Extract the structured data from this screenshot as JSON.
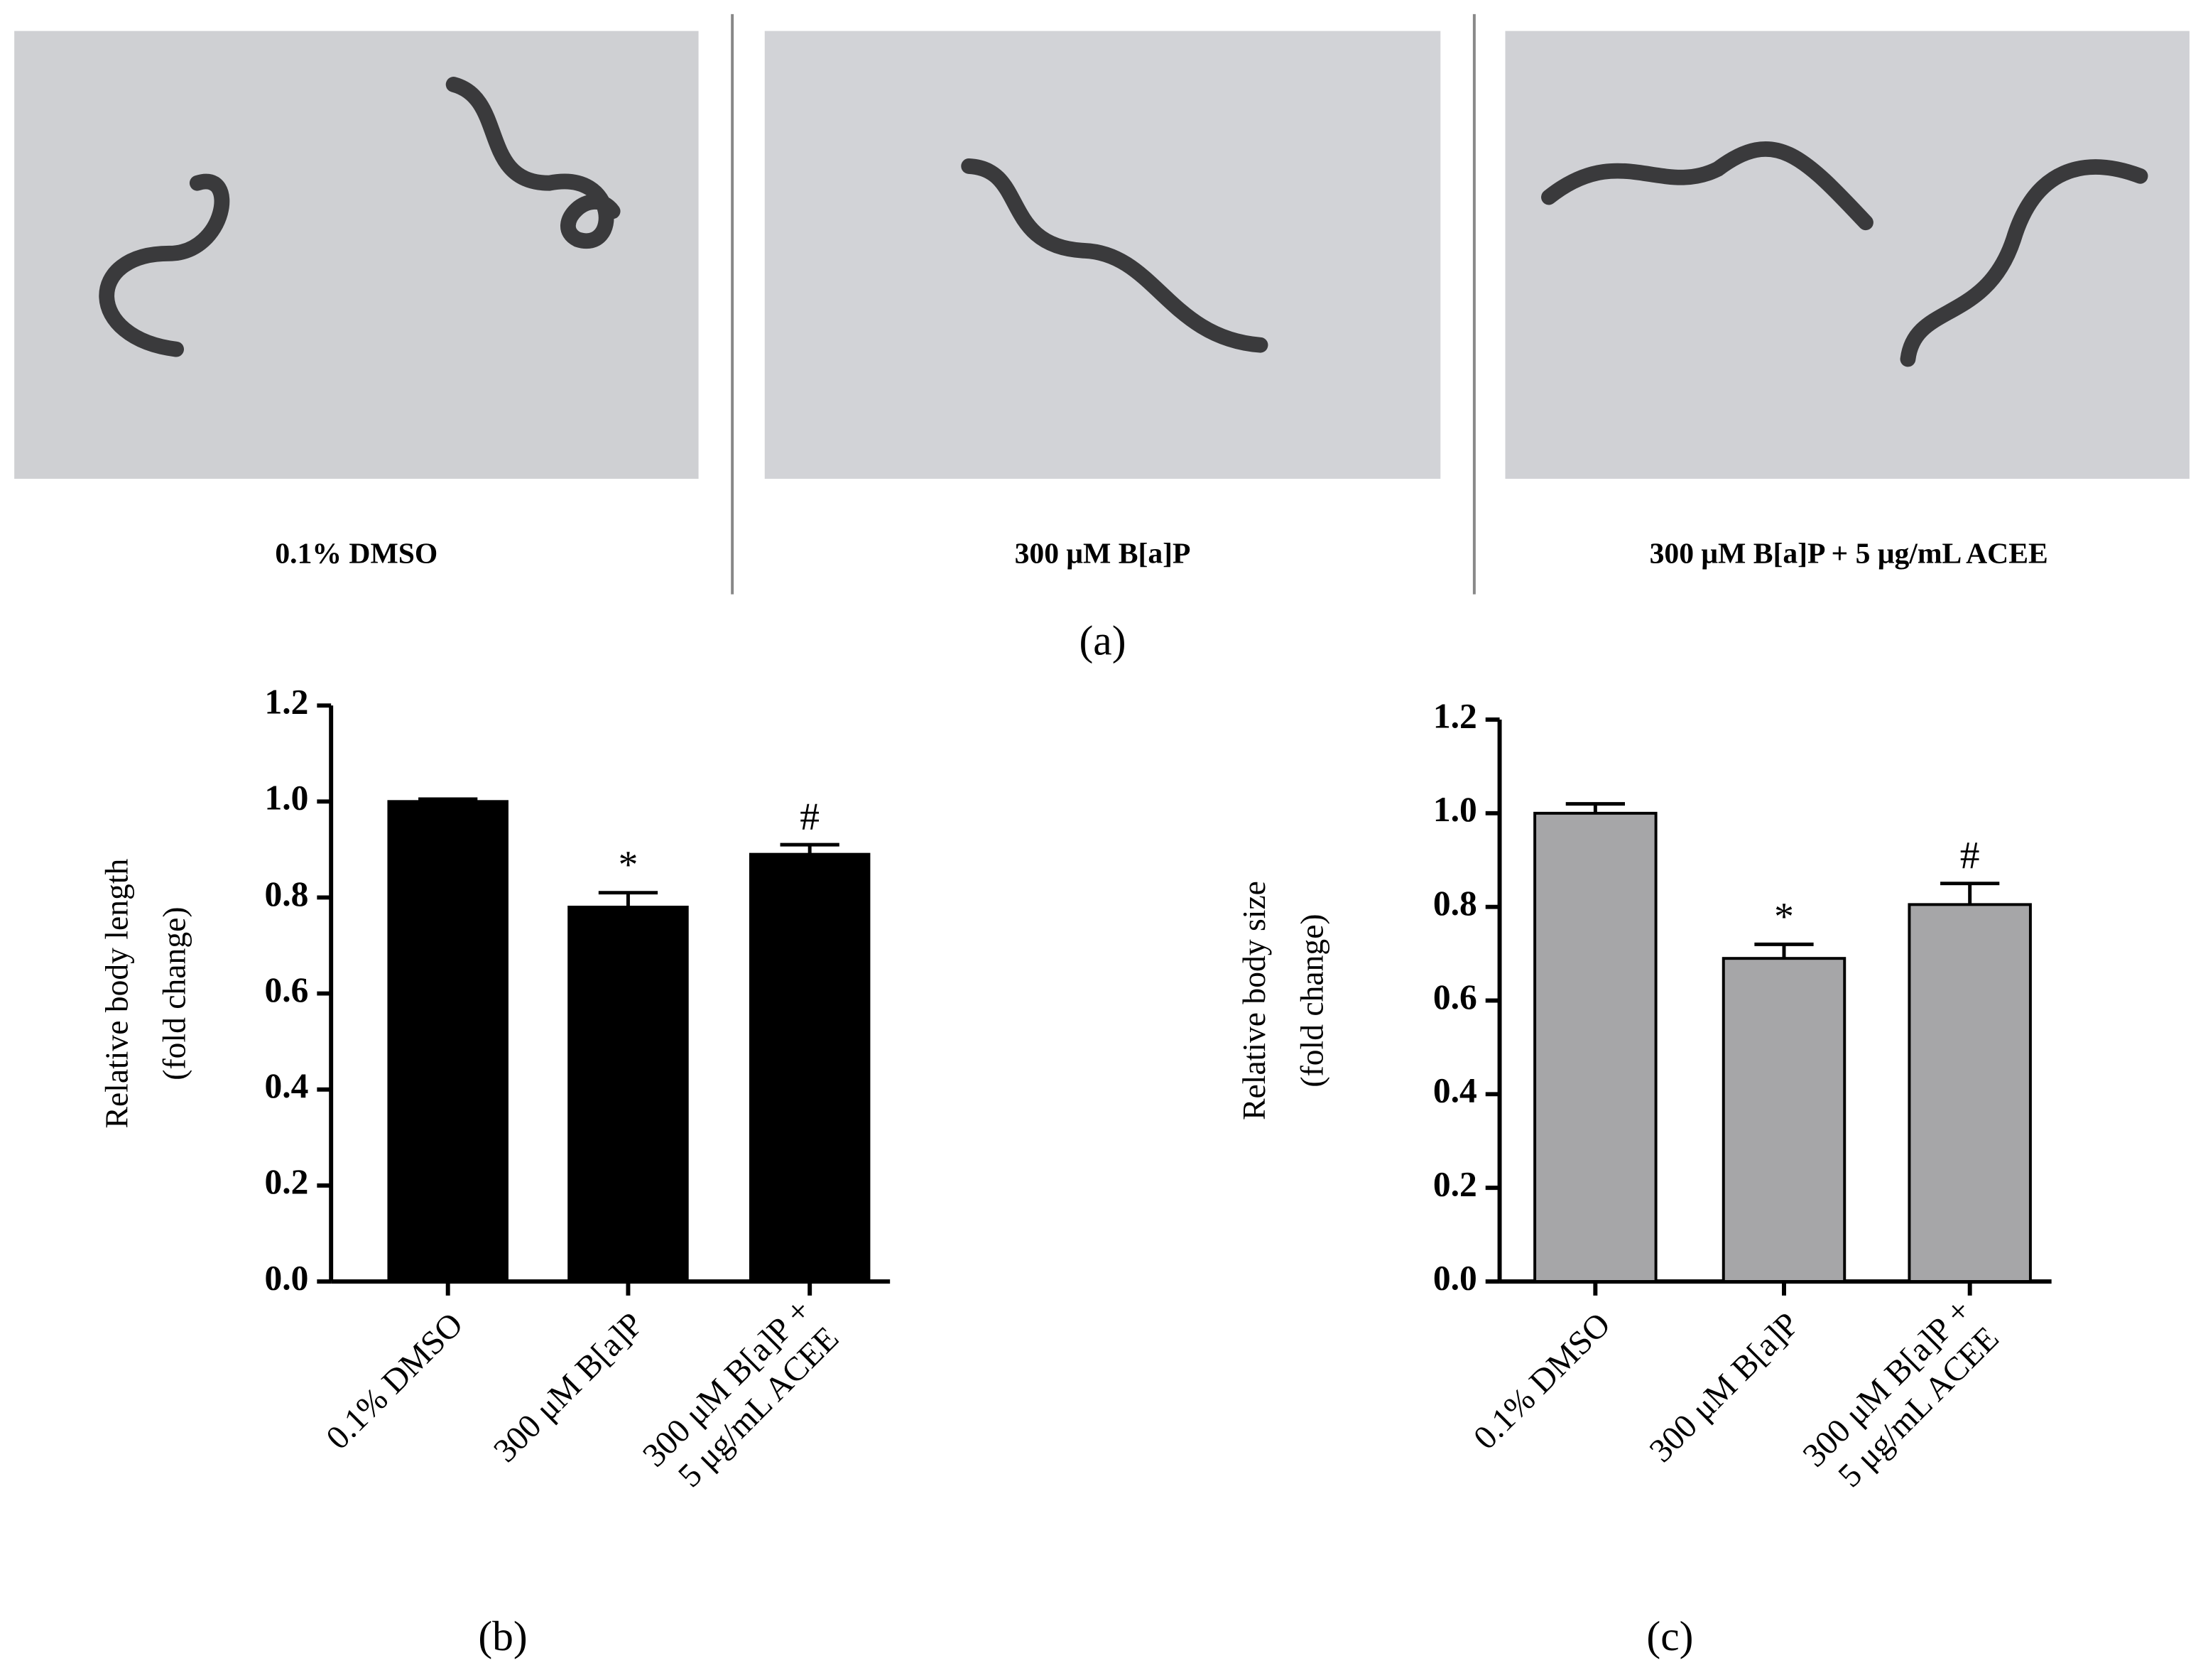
{
  "photos": {
    "captions": [
      "0.1% DMSO",
      "300 μM B[a]P",
      "300 μM B[a]P + 5 μg/mL ACEE"
    ],
    "label": "(a)"
  },
  "chart_data": [
    {
      "type": "bar",
      "label": "(b)",
      "ylabel": [
        "Relative body length",
        "(fold change)"
      ],
      "categories": [
        "0.1% DMSO",
        "300 μM B[a]P",
        "300 μM B[a]P +\n5 μg/mL ACEE"
      ],
      "values": [
        1.0,
        0.78,
        0.89
      ],
      "errors": [
        0.005,
        0.03,
        0.02
      ],
      "significance": [
        null,
        "*",
        "#"
      ],
      "color": "#000000",
      "ylim": [
        0,
        1.2
      ],
      "yticks": [
        {
          "value": 0,
          "label": "0.0"
        },
        {
          "value": 0.2,
          "label": "0.2"
        },
        {
          "value": 0.4,
          "label": "0.4"
        },
        {
          "value": 0.6,
          "label": "0.6"
        },
        {
          "value": 0.8,
          "label": "0.8"
        },
        {
          "value": 1.0,
          "label": "1.0"
        },
        {
          "value": 1.2,
          "label": "1.2"
        }
      ]
    },
    {
      "type": "bar",
      "label": "(c)",
      "ylabel": [
        "Relative body size",
        "(fold change)"
      ],
      "categories": [
        "0.1% DMSO",
        "300 μM B[a]P",
        "300 μM B[a]P +\n5 μg/mL ACEE"
      ],
      "values": [
        1.0,
        0.69,
        0.805
      ],
      "errors": [
        0.02,
        0.03,
        0.045
      ],
      "significance": [
        null,
        "*",
        "#"
      ],
      "color": "#a6a6a8",
      "ylim": [
        0,
        1.2
      ],
      "yticks": [
        {
          "value": 0,
          "label": "0.0"
        },
        {
          "value": 0.2,
          "label": "0.2"
        },
        {
          "value": 0.4,
          "label": "0.4"
        },
        {
          "value": 0.6,
          "label": "0.6"
        },
        {
          "value": 0.8,
          "label": "0.8"
        },
        {
          "value": 1.0,
          "label": "1.0"
        },
        {
          "value": 1.2,
          "label": "1.2"
        }
      ]
    }
  ]
}
